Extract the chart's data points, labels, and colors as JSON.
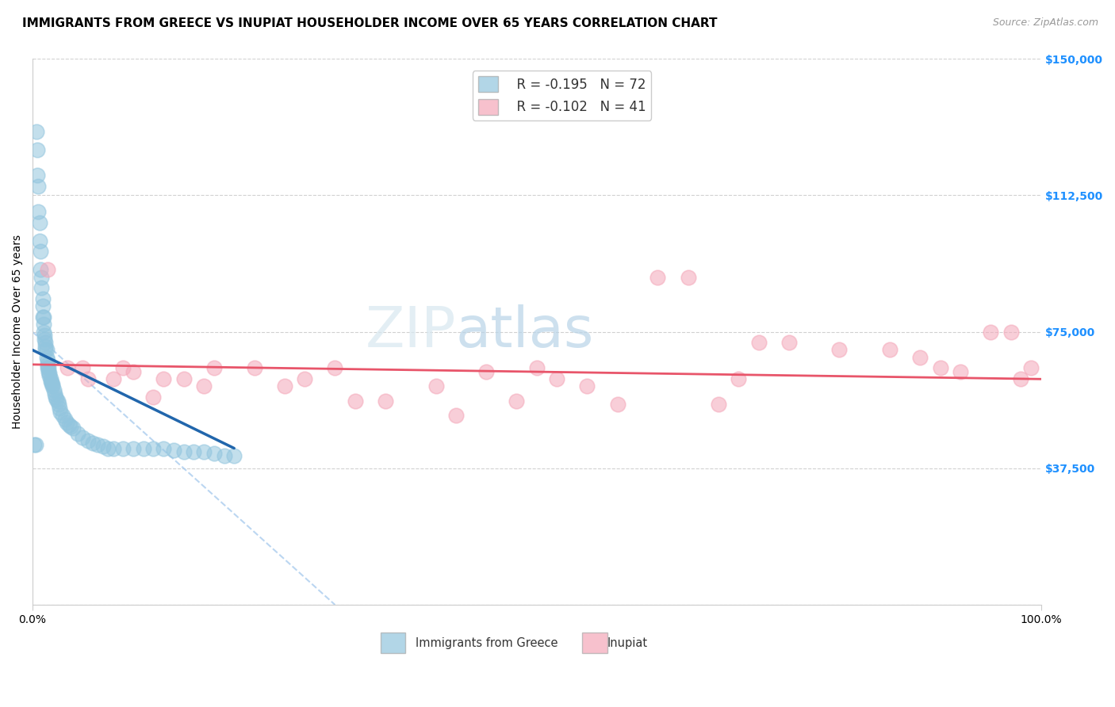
{
  "title": "IMMIGRANTS FROM GREECE VS INUPIAT HOUSEHOLDER INCOME OVER 65 YEARS CORRELATION CHART",
  "source": "Source: ZipAtlas.com",
  "ylabel": "Householder Income Over 65 years",
  "xlim": [
    0,
    100
  ],
  "ylim": [
    0,
    150000
  ],
  "yticks": [
    0,
    37500,
    75000,
    112500,
    150000
  ],
  "ytick_labels": [
    "",
    "$37,500",
    "$75,000",
    "$112,500",
    "$150,000"
  ],
  "xtick_labels": [
    "0.0%",
    "100.0%"
  ],
  "legend_r1": "R = -0.195",
  "legend_n1": "N = 72",
  "legend_r2": "R = -0.102",
  "legend_n2": "N = 41",
  "blue_color": "#92c5de",
  "pink_color": "#f4a7b9",
  "blue_line_color": "#2166ac",
  "pink_line_color": "#e8556a",
  "watermark_zip": "ZIP",
  "watermark_atlas": "atlas",
  "blue_scatter_x": [
    0.2,
    0.3,
    0.4,
    0.5,
    0.5,
    0.6,
    0.6,
    0.7,
    0.7,
    0.8,
    0.8,
    0.9,
    0.9,
    1.0,
    1.0,
    1.0,
    1.1,
    1.1,
    1.1,
    1.2,
    1.2,
    1.3,
    1.3,
    1.3,
    1.4,
    1.4,
    1.5,
    1.5,
    1.5,
    1.6,
    1.6,
    1.7,
    1.7,
    1.8,
    1.8,
    1.9,
    2.0,
    2.0,
    2.1,
    2.2,
    2.3,
    2.4,
    2.5,
    2.6,
    2.7,
    2.8,
    3.0,
    3.2,
    3.4,
    3.6,
    3.8,
    4.0,
    4.5,
    5.0,
    5.5,
    6.0,
    6.5,
    7.0,
    7.5,
    8.0,
    9.0,
    10.0,
    11.0,
    12.0,
    13.0,
    14.0,
    15.0,
    16.0,
    17.0,
    18.0,
    19.0,
    20.0
  ],
  "blue_scatter_y": [
    44000,
    44000,
    130000,
    125000,
    118000,
    115000,
    108000,
    105000,
    100000,
    97000,
    92000,
    90000,
    87000,
    84000,
    82000,
    79000,
    79000,
    77000,
    75000,
    74000,
    73000,
    72000,
    71000,
    70000,
    70000,
    68000,
    67000,
    66000,
    65000,
    65000,
    64000,
    63500,
    63000,
    62000,
    61500,
    61000,
    60500,
    60000,
    59000,
    58000,
    57000,
    56500,
    56000,
    55000,
    54000,
    53000,
    52000,
    51000,
    50000,
    49500,
    49000,
    48500,
    47000,
    46000,
    45000,
    44500,
    44000,
    43500,
    43000,
    43000,
    43000,
    43000,
    43000,
    43000,
    43000,
    42500,
    42000,
    42000,
    42000,
    41500,
    41000,
    41000
  ],
  "pink_scatter_x": [
    1.5,
    3.5,
    5.0,
    5.5,
    8.0,
    9.0,
    10.0,
    12.0,
    13.0,
    15.0,
    17.0,
    18.0,
    22.0,
    25.0,
    27.0,
    30.0,
    32.0,
    35.0,
    40.0,
    42.0,
    45.0,
    48.0,
    50.0,
    52.0,
    55.0,
    58.0,
    62.0,
    65.0,
    68.0,
    70.0,
    72.0,
    75.0,
    80.0,
    85.0,
    88.0,
    90.0,
    92.0,
    95.0,
    97.0,
    98.0,
    99.0
  ],
  "pink_scatter_y": [
    92000,
    65000,
    65000,
    62000,
    62000,
    65000,
    64000,
    57000,
    62000,
    62000,
    60000,
    65000,
    65000,
    60000,
    62000,
    65000,
    56000,
    56000,
    60000,
    52000,
    64000,
    56000,
    65000,
    62000,
    60000,
    55000,
    90000,
    90000,
    55000,
    62000,
    72000,
    72000,
    70000,
    70000,
    68000,
    65000,
    64000,
    75000,
    75000,
    62000,
    65000
  ],
  "blue_line_x": [
    0.0,
    20.0
  ],
  "blue_line_y": [
    70000,
    43000
  ],
  "pink_line_x": [
    0.0,
    100.0
  ],
  "pink_line_y": [
    66000,
    62000
  ],
  "dash_line_x": [
    0.0,
    30.0
  ],
  "dash_line_y": [
    75000,
    0
  ],
  "title_fontsize": 11,
  "axis_label_fontsize": 10,
  "tick_fontsize": 10,
  "legend_fontsize": 12
}
